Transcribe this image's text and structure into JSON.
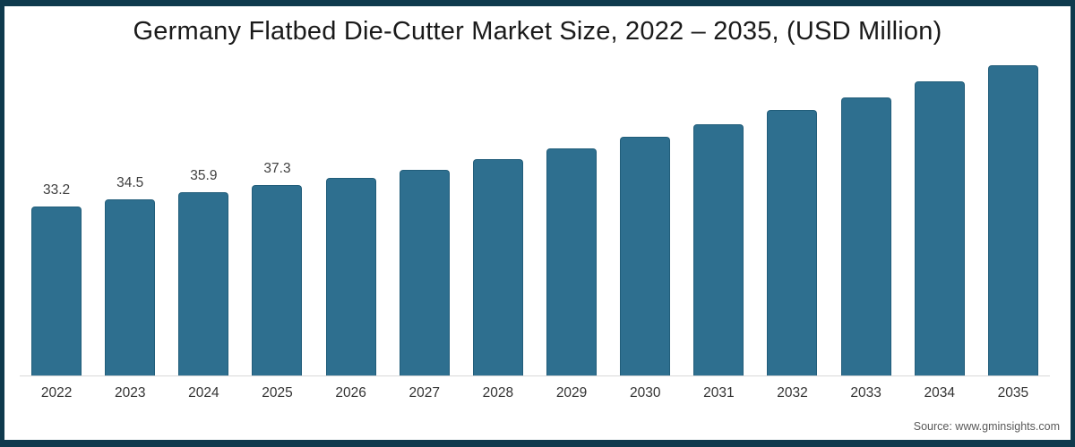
{
  "chart": {
    "title": "Germany Flatbed Die-Cutter Market Size, 2022 – 2035, (USD Million)",
    "source": "Source: www.gminsights.com"
  },
  "chart_data": {
    "type": "bar",
    "title": "Germany Flatbed Die-Cutter Market Size, 2022 – 2035, (USD Million)",
    "categories": [
      "2022",
      "2023",
      "2024",
      "2025",
      "2026",
      "2027",
      "2028",
      "2029",
      "2030",
      "2031",
      "2032",
      "2033",
      "2034",
      "2035"
    ],
    "values": [
      33.2,
      34.5,
      35.9,
      37.3,
      38.8,
      40.4,
      42.5,
      44.6,
      46.9,
      49.3,
      52.1,
      54.6,
      57.7,
      60.9
    ],
    "data_labels": [
      "33.2",
      "34.5",
      "35.9",
      "37.3",
      null,
      null,
      null,
      null,
      null,
      null,
      null,
      null,
      null,
      null
    ],
    "xlabel": "",
    "ylabel": "",
    "ylim": [
      0,
      63
    ],
    "grid": false,
    "legend": false,
    "bar_color": "#2e6f8f",
    "bar_border_color": "#215d7a",
    "axis_line_color": "#d9d9d9",
    "frame_color": "#0f3a4d",
    "source": "Source: www.gminsights.com"
  }
}
